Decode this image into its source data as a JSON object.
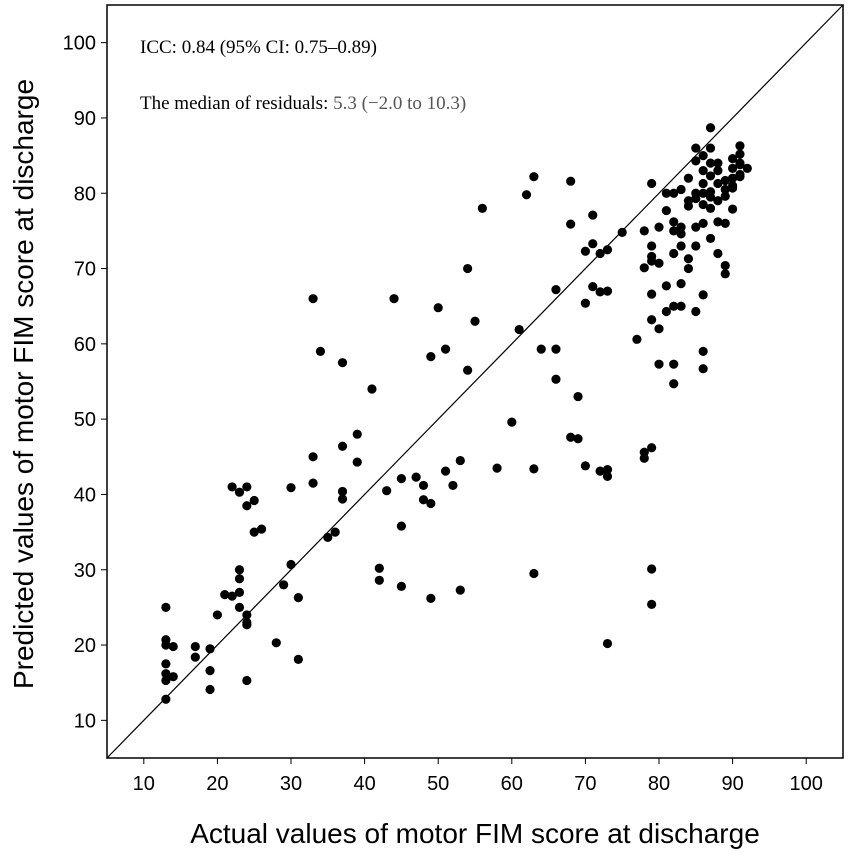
{
  "chart_data": {
    "type": "scatter",
    "xlabel": "Actual values of motor FIM score at discharge",
    "ylabel": "Predicted values of motor FIM score at discharge",
    "xlim": [
      5,
      105
    ],
    "ylim": [
      5,
      105
    ],
    "xticks": [
      10,
      20,
      30,
      40,
      50,
      60,
      70,
      80,
      90,
      100
    ],
    "yticks": [
      10,
      20,
      30,
      40,
      50,
      60,
      70,
      80,
      90,
      100
    ],
    "reference_line": "identity (y = x)",
    "annotations": {
      "icc": "ICC: 0.84 (95% CI: 0.75–0.89)",
      "median_prefix": "The median of residuals: ",
      "median_value": "5.3 (−2.0 to 10.3)"
    },
    "colors": {
      "point": "#000000",
      "axis": "#000000",
      "median_value": "#555555"
    },
    "points": [
      [
        13,
        25
      ],
      [
        13,
        20.7
      ],
      [
        13,
        20
      ],
      [
        14,
        19.8
      ],
      [
        13,
        17.5
      ],
      [
        13,
        16.2
      ],
      [
        13,
        15.3
      ],
      [
        14,
        15.8
      ],
      [
        13,
        12.8
      ],
      [
        17,
        19.8
      ],
      [
        17,
        18.4
      ],
      [
        19,
        19.5
      ],
      [
        19,
        16.6
      ],
      [
        19,
        14.1
      ],
      [
        20,
        24
      ],
      [
        21,
        26.7
      ],
      [
        22,
        26.5
      ],
      [
        22,
        41
      ],
      [
        23,
        40.3
      ],
      [
        24,
        41
      ],
      [
        23,
        30
      ],
      [
        23,
        28.8
      ],
      [
        23,
        27
      ],
      [
        23,
        25
      ],
      [
        24,
        24
      ],
      [
        24,
        23
      ],
      [
        24,
        22.7
      ],
      [
        24,
        15.3
      ],
      [
        24,
        38.5
      ],
      [
        25,
        39.2
      ],
      [
        25,
        35
      ],
      [
        26,
        35.4
      ],
      [
        28,
        20.3
      ],
      [
        29,
        28
      ],
      [
        30,
        30.7
      ],
      [
        30,
        40.9
      ],
      [
        31,
        26.3
      ],
      [
        31,
        18.1
      ],
      [
        33,
        66
      ],
      [
        33,
        45
      ],
      [
        33,
        41.5
      ],
      [
        34,
        59
      ],
      [
        35,
        34.3
      ],
      [
        36,
        35
      ],
      [
        37,
        57.5
      ],
      [
        37,
        46.4
      ],
      [
        37,
        40.4
      ],
      [
        37,
        39.4
      ],
      [
        39,
        48
      ],
      [
        39,
        44.3
      ],
      [
        41,
        54
      ],
      [
        42,
        30.2
      ],
      [
        42,
        28.6
      ],
      [
        43,
        40.5
      ],
      [
        44,
        66
      ],
      [
        45,
        42.1
      ],
      [
        45,
        35.8
      ],
      [
        45,
        27.8
      ],
      [
        47,
        42.3
      ],
      [
        48,
        41.2
      ],
      [
        48,
        39.3
      ],
      [
        49,
        38.8
      ],
      [
        49,
        58.3
      ],
      [
        49,
        26.2
      ],
      [
        50,
        64.8
      ],
      [
        51,
        59.3
      ],
      [
        51,
        43.1
      ],
      [
        52,
        41.2
      ],
      [
        53,
        44.5
      ],
      [
        53,
        27.3
      ],
      [
        54,
        70
      ],
      [
        54,
        56.5
      ],
      [
        55,
        63
      ],
      [
        56,
        78
      ],
      [
        58,
        43.5
      ],
      [
        60,
        49.6
      ],
      [
        61,
        61.9
      ],
      [
        62,
        79.8
      ],
      [
        63,
        82.2
      ],
      [
        63,
        43.4
      ],
      [
        63,
        29.5
      ],
      [
        64,
        59.3
      ],
      [
        66,
        67.2
      ],
      [
        66,
        59.3
      ],
      [
        66,
        55.3
      ],
      [
        68,
        81.6
      ],
      [
        68,
        75.9
      ],
      [
        68,
        47.6
      ],
      [
        69,
        53
      ],
      [
        69,
        47.4
      ],
      [
        70,
        72.3
      ],
      [
        70,
        65.4
      ],
      [
        70,
        43.8
      ],
      [
        71,
        77.1
      ],
      [
        71,
        73.3
      ],
      [
        71,
        67.6
      ],
      [
        72,
        72
      ],
      [
        72,
        66.9
      ],
      [
        73,
        72.5
      ],
      [
        73,
        67
      ],
      [
        73,
        42.4
      ],
      [
        73,
        43.3
      ],
      [
        72,
        43.1
      ],
      [
        73,
        20.2
      ],
      [
        75,
        74.8
      ],
      [
        77,
        60.6
      ],
      [
        78,
        75
      ],
      [
        78,
        70.1
      ],
      [
        78,
        45.6
      ],
      [
        78,
        44.8
      ],
      [
        79,
        81.3
      ],
      [
        79,
        73
      ],
      [
        79,
        71.6
      ],
      [
        79,
        71
      ],
      [
        79,
        66.6
      ],
      [
        79,
        63.2
      ],
      [
        79,
        46.2
      ],
      [
        79,
        30.1
      ],
      [
        79,
        25.4
      ],
      [
        80,
        75.5
      ],
      [
        80,
        70.7
      ],
      [
        80,
        62
      ],
      [
        80,
        57.3
      ],
      [
        81,
        80
      ],
      [
        81,
        77.7
      ],
      [
        81,
        67.7
      ],
      [
        81,
        64.3
      ],
      [
        82,
        80
      ],
      [
        82,
        76.2
      ],
      [
        82,
        75
      ],
      [
        82,
        72
      ],
      [
        82,
        65
      ],
      [
        82,
        57.3
      ],
      [
        82,
        54.7
      ],
      [
        83,
        80.5
      ],
      [
        83,
        75.5
      ],
      [
        83,
        74.6
      ],
      [
        83,
        73
      ],
      [
        83,
        68
      ],
      [
        84,
        79
      ],
      [
        84,
        78.3
      ],
      [
        84,
        71.3
      ],
      [
        85,
        86
      ],
      [
        85,
        84.3
      ],
      [
        85,
        80
      ],
      [
        85,
        79.3
      ],
      [
        85,
        75.5
      ],
      [
        85,
        64.3
      ],
      [
        86,
        85
      ],
      [
        86,
        80
      ],
      [
        86,
        78.5
      ],
      [
        86,
        76
      ],
      [
        86,
        66.5
      ],
      [
        86,
        59
      ],
      [
        86,
        56.7
      ],
      [
        87,
        88.7
      ],
      [
        87,
        86
      ],
      [
        87,
        84
      ],
      [
        87,
        82.3
      ],
      [
        87,
        80.2
      ],
      [
        87,
        78
      ],
      [
        88,
        84
      ],
      [
        88,
        81.3
      ],
      [
        88,
        79
      ],
      [
        88,
        76.2
      ],
      [
        89,
        80.5
      ],
      [
        89,
        79.6
      ],
      [
        89,
        70.4
      ],
      [
        89,
        69.3
      ],
      [
        90,
        84.6
      ],
      [
        90,
        83.3
      ],
      [
        90,
        82
      ],
      [
        90,
        81
      ],
      [
        90,
        77.9
      ],
      [
        91,
        86.3
      ],
      [
        91,
        85.2
      ],
      [
        91,
        84
      ],
      [
        91,
        82.2
      ],
      [
        92,
        83.3
      ],
      [
        91,
        82.5
      ],
      [
        88,
        83
      ],
      [
        89,
        81.7
      ],
      [
        84,
        82
      ],
      [
        86,
        83
      ],
      [
        90,
        80.7
      ],
      [
        87,
        74
      ],
      [
        88,
        72
      ],
      [
        84,
        70
      ],
      [
        83,
        65
      ],
      [
        85,
        73
      ],
      [
        89,
        76
      ],
      [
        91,
        83.8
      ],
      [
        87,
        79.5
      ],
      [
        86,
        81.3
      ]
    ]
  }
}
